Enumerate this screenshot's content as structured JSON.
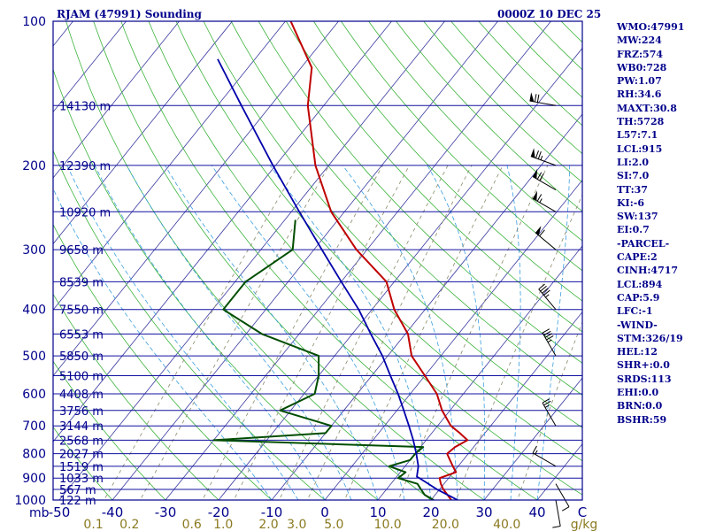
{
  "header": {
    "station": "RJAM (47991) Sounding",
    "valid_time": "0000Z 10 DEC 25"
  },
  "indices": [
    "WMO:47991",
    "MW:224",
    "FRZ:574",
    "WB0:728",
    "PW:1.07",
    "RH:34.6",
    "MAXT:30.8",
    "TH:5728",
    "L57:7.1",
    "LCL:915",
    "LI:2.0",
    "SI:7.0",
    "TT:37",
    "KI:-6",
    "SW:137",
    "EI:0.7",
    "-PARCEL-",
    "CAPE:2",
    "CINH:4717",
    "LCL:894",
    "CAP:5.9",
    "LFC:-1",
    "-WIND-",
    "STM:326/19",
    "HEL:12",
    "SHR+:0.0",
    "SRDS:113",
    "EHI:0.0",
    "BRN:0.0",
    "BSHR:59"
  ],
  "colors": {
    "frame": "#00008b",
    "isobar": "#1010a0",
    "isotherm": "#3a3aa0",
    "dry_adiabat": "#3cb33c",
    "moist_adiabat": "#3a9ee0",
    "mixing_ratio": "#8a8a6a",
    "temperature": "#c00000",
    "dewpoint": "#004d00",
    "parcel": "#0000aa",
    "label": "#00008b",
    "wind": "#000000"
  },
  "chart_data": {
    "type": "line",
    "subtype": "skew-T log-P",
    "y_axis_label": "mb",
    "x_axis_unit": "C",
    "mixing_ratio_unit": "g/kg",
    "ylim": [
      1000,
      100
    ],
    "xlim": [
      -50,
      50
    ],
    "pressure_ticks": [
      100,
      200,
      300,
      400,
      500,
      600,
      700,
      800,
      900,
      1000
    ],
    "temperature_ticks": [
      -50,
      -40,
      -30,
      -20,
      -10,
      0,
      10,
      20,
      30,
      40
    ],
    "mixing_ratio_ticks": [
      0.1,
      0.2,
      0.6,
      1.0,
      2.0,
      3.0,
      5.0,
      10.0,
      20.0,
      40.0
    ],
    "mixing_ratio_tick_labels": [
      "0.1",
      "0.2",
      "0.6",
      "1.0",
      "2.0",
      "3.0",
      "5.0",
      "10.0",
      "20.0",
      "40.0"
    ],
    "height_labels": [
      {
        "p": 150,
        "label": "14130 m"
      },
      {
        "p": 200,
        "label": "12390 m"
      },
      {
        "p": 250,
        "label": "10920 m"
      },
      {
        "p": 300,
        "label": "9658 m"
      },
      {
        "p": 350,
        "label": "8539 m"
      },
      {
        "p": 400,
        "label": "7550 m"
      },
      {
        "p": 450,
        "label": "6553 m"
      },
      {
        "p": 500,
        "label": "5850 m"
      },
      {
        "p": 550,
        "label": "5100 m"
      },
      {
        "p": 600,
        "label": "4408 m"
      },
      {
        "p": 650,
        "label": "3756 m"
      },
      {
        "p": 700,
        "label": "3144 m"
      },
      {
        "p": 750,
        "label": "2568 m"
      },
      {
        "p": 800,
        "label": "2027 m"
      },
      {
        "p": 850,
        "label": "1519 m"
      },
      {
        "p": 900,
        "label": "1033 m"
      },
      {
        "p": 950,
        "label": "567 m"
      },
      {
        "p": 1000,
        "label": "122 m"
      }
    ],
    "series": [
      {
        "key": "temperature",
        "points": [
          {
            "p": 1000,
            "t": 23.8
          },
          {
            "p": 975,
            "t": 22.3
          },
          {
            "p": 950,
            "t": 20.7
          },
          {
            "p": 925,
            "t": 19.4
          },
          {
            "p": 900,
            "t": 18.3
          },
          {
            "p": 875,
            "t": 20.5
          },
          {
            "p": 850,
            "t": 19.0
          },
          {
            "p": 825,
            "t": 17.5
          },
          {
            "p": 800,
            "t": 16.0
          },
          {
            "p": 775,
            "t": 16.5
          },
          {
            "p": 750,
            "t": 17.8
          },
          {
            "p": 725,
            "t": 15.3
          },
          {
            "p": 700,
            "t": 12.5
          },
          {
            "p": 650,
            "t": 8.5
          },
          {
            "p": 600,
            "t": 5.0
          },
          {
            "p": 550,
            "t": 0.0
          },
          {
            "p": 500,
            "t": -5.5
          },
          {
            "p": 450,
            "t": -9.5
          },
          {
            "p": 400,
            "t": -15.8
          },
          {
            "p": 350,
            "t": -21.5
          },
          {
            "p": 300,
            "t": -32.0
          },
          {
            "p": 250,
            "t": -42.5
          },
          {
            "p": 200,
            "t": -52.5
          },
          {
            "p": 150,
            "t": -63.0
          },
          {
            "p": 125,
            "t": -68.0
          },
          {
            "p": 100,
            "t": -79.0
          }
        ]
      },
      {
        "key": "dewpoint",
        "points": [
          {
            "p": 1000,
            "t": 20.5
          },
          {
            "p": 975,
            "t": 18.0
          },
          {
            "p": 950,
            "t": 16.5
          },
          {
            "p": 925,
            "t": 15.0
          },
          {
            "p": 900,
            "t": 10.5
          },
          {
            "p": 875,
            "t": 11.0
          },
          {
            "p": 850,
            "t": 7.0
          },
          {
            "p": 825,
            "t": 10.0
          },
          {
            "p": 800,
            "t": 10.0
          },
          {
            "p": 775,
            "t": 10.5
          },
          {
            "p": 750,
            "t": -30.0
          },
          {
            "p": 725,
            "t": -10.0
          },
          {
            "p": 700,
            "t": -10.0
          },
          {
            "p": 650,
            "t": -22.0
          },
          {
            "p": 600,
            "t": -18.0
          },
          {
            "p": 550,
            "t": -20.0
          },
          {
            "p": 500,
            "t": -23.0
          },
          {
            "p": 450,
            "t": -37.0
          },
          {
            "p": 400,
            "t": -48.0
          },
          {
            "p": 350,
            "t": -48.0
          },
          {
            "p": 300,
            "t": -44.0
          },
          {
            "p": 260,
            "t": -48.0
          }
        ]
      },
      {
        "key": "parcel",
        "points": [
          {
            "p": 1000,
            "t": 25.0
          },
          {
            "p": 950,
            "t": 19.5
          },
          {
            "p": 900,
            "t": 14.5
          },
          {
            "p": 894,
            "t": 13.8
          },
          {
            "p": 850,
            "t": 12.5
          },
          {
            "p": 800,
            "t": 10.2
          },
          {
            "p": 750,
            "t": 7.6
          },
          {
            "p": 700,
            "t": 4.6
          },
          {
            "p": 650,
            "t": 1.3
          },
          {
            "p": 600,
            "t": -2.3
          },
          {
            "p": 550,
            "t": -6.5
          },
          {
            "p": 500,
            "t": -11.0
          },
          {
            "p": 450,
            "t": -16.5
          },
          {
            "p": 400,
            "t": -22.5
          },
          {
            "p": 350,
            "t": -30.0
          },
          {
            "p": 300,
            "t": -38.5
          },
          {
            "p": 250,
            "t": -48.5
          },
          {
            "p": 200,
            "t": -60.5
          },
          {
            "p": 150,
            "t": -75.5
          },
          {
            "p": 120,
            "t": -87.0
          }
        ]
      }
    ],
    "wind_barbs": [
      {
        "p": 1000,
        "dir": 170,
        "spd": 10
      },
      {
        "p": 925,
        "dir": 150,
        "spd": 10
      },
      {
        "p": 850,
        "dir": 300,
        "spd": 15
      },
      {
        "p": 700,
        "dir": 330,
        "spd": 25
      },
      {
        "p": 500,
        "dir": 330,
        "spd": 45
      },
      {
        "p": 400,
        "dir": 320,
        "spd": 45
      },
      {
        "p": 300,
        "dir": 310,
        "spd": 60
      },
      {
        "p": 250,
        "dir": 300,
        "spd": 65
      },
      {
        "p": 225,
        "dir": 300,
        "spd": 70
      },
      {
        "p": 200,
        "dir": 290,
        "spd": 75
      },
      {
        "p": 150,
        "dir": 280,
        "spd": 70
      }
    ]
  }
}
